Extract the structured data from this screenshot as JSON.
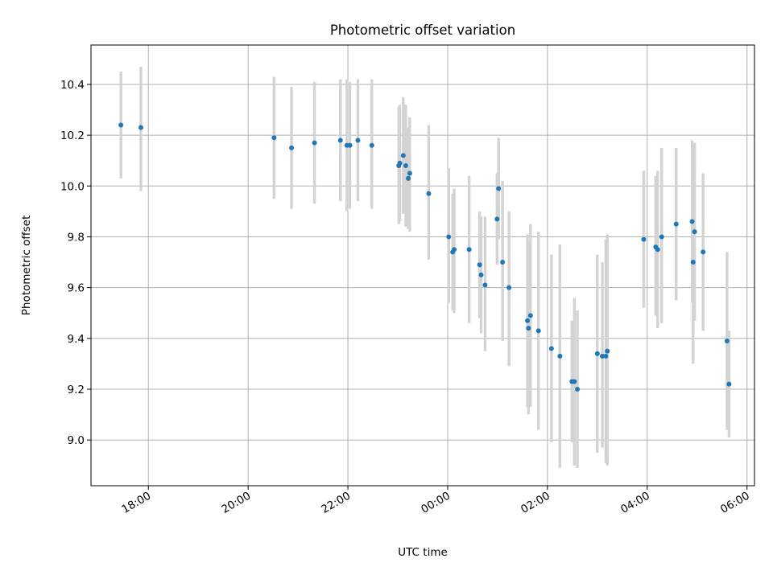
{
  "chart_data": {
    "type": "scatter",
    "title": "Photometric offset variation",
    "xlabel": "UTC time",
    "ylabel": "Photometric offset",
    "x_unit": "hours since 00:00 UTC",
    "xlim": [
      -7.15,
      6.15
    ],
    "ylim": [
      8.82,
      10.555
    ],
    "xticks": [
      {
        "value": -6,
        "label": "18:00"
      },
      {
        "value": -4,
        "label": "20:00"
      },
      {
        "value": -2,
        "label": "22:00"
      },
      {
        "value": 0,
        "label": "00:00"
      },
      {
        "value": 2,
        "label": "02:00"
      },
      {
        "value": 4,
        "label": "04:00"
      },
      {
        "value": 6,
        "label": "06:00"
      }
    ],
    "yticks": [
      {
        "value": 9.0,
        "label": "9.0"
      },
      {
        "value": 9.2,
        "label": "9.2"
      },
      {
        "value": 9.4,
        "label": "9.4"
      },
      {
        "value": 9.6,
        "label": "9.6"
      },
      {
        "value": 9.8,
        "label": "9.8"
      },
      {
        "value": 10.0,
        "label": "10.0"
      },
      {
        "value": 10.2,
        "label": "10.2"
      },
      {
        "value": 10.4,
        "label": "10.4"
      }
    ],
    "grid": true,
    "colors": {
      "points": "#1f77b4",
      "errorbars": "#d3d3d3"
    },
    "points": [
      {
        "x": -6.55,
        "y": 10.24,
        "lo": 10.03,
        "hi": 10.45
      },
      {
        "x": -6.15,
        "y": 10.23,
        "lo": 9.98,
        "hi": 10.47
      },
      {
        "x": -3.48,
        "y": 10.19,
        "lo": 9.95,
        "hi": 10.43
      },
      {
        "x": -3.13,
        "y": 10.15,
        "lo": 9.91,
        "hi": 10.39
      },
      {
        "x": -2.67,
        "y": 10.17,
        "lo": 9.93,
        "hi": 10.41
      },
      {
        "x": -2.15,
        "y": 10.18,
        "lo": 9.94,
        "hi": 10.42
      },
      {
        "x": -2.02,
        "y": 10.16,
        "lo": 9.9,
        "hi": 10.42
      },
      {
        "x": -1.96,
        "y": 10.16,
        "lo": 9.91,
        "hi": 10.41
      },
      {
        "x": -1.8,
        "y": 10.18,
        "lo": 9.94,
        "hi": 10.42
      },
      {
        "x": -1.52,
        "y": 10.16,
        "lo": 9.91,
        "hi": 10.42
      },
      {
        "x": -0.98,
        "y": 10.08,
        "lo": 9.85,
        "hi": 10.31
      },
      {
        "x": -0.96,
        "y": 10.09,
        "lo": 9.86,
        "hi": 10.32
      },
      {
        "x": -0.89,
        "y": 10.12,
        "lo": 9.89,
        "hi": 10.35
      },
      {
        "x": -0.84,
        "y": 10.08,
        "lo": 9.84,
        "hi": 10.32
      },
      {
        "x": -0.79,
        "y": 10.03,
        "lo": 9.83,
        "hi": 10.23
      },
      {
        "x": -0.76,
        "y": 10.05,
        "lo": 9.82,
        "hi": 10.27
      },
      {
        "x": -0.38,
        "y": 9.97,
        "lo": 9.71,
        "hi": 10.24
      },
      {
        "x": 0.02,
        "y": 9.8,
        "lo": 9.54,
        "hi": 10.07
      },
      {
        "x": 0.1,
        "y": 9.74,
        "lo": 9.51,
        "hi": 9.97
      },
      {
        "x": 0.13,
        "y": 9.75,
        "lo": 9.5,
        "hi": 9.99
      },
      {
        "x": 0.43,
        "y": 9.75,
        "lo": 9.46,
        "hi": 10.04
      },
      {
        "x": 0.64,
        "y": 9.69,
        "lo": 9.48,
        "hi": 9.9
      },
      {
        "x": 0.67,
        "y": 9.65,
        "lo": 9.42,
        "hi": 9.88
      },
      {
        "x": 0.75,
        "y": 9.61,
        "lo": 9.35,
        "hi": 9.88
      },
      {
        "x": 0.99,
        "y": 9.87,
        "lo": 9.69,
        "hi": 10.05
      },
      {
        "x": 1.02,
        "y": 9.99,
        "lo": 9.79,
        "hi": 10.19
      },
      {
        "x": 1.1,
        "y": 9.7,
        "lo": 9.39,
        "hi": 10.02
      },
      {
        "x": 1.23,
        "y": 9.6,
        "lo": 9.29,
        "hi": 9.9
      },
      {
        "x": 1.6,
        "y": 9.47,
        "lo": 9.13,
        "hi": 9.81
      },
      {
        "x": 1.62,
        "y": 9.44,
        "lo": 9.1,
        "hi": 9.78
      },
      {
        "x": 1.66,
        "y": 9.49,
        "lo": 9.13,
        "hi": 9.85
      },
      {
        "x": 1.82,
        "y": 9.43,
        "lo": 9.04,
        "hi": 9.82
      },
      {
        "x": 2.08,
        "y": 9.36,
        "lo": 8.99,
        "hi": 9.73
      },
      {
        "x": 2.25,
        "y": 9.33,
        "lo": 8.89,
        "hi": 9.77
      },
      {
        "x": 2.49,
        "y": 9.23,
        "lo": 8.99,
        "hi": 9.47
      },
      {
        "x": 2.54,
        "y": 9.23,
        "lo": 8.9,
        "hi": 9.56
      },
      {
        "x": 2.6,
        "y": 9.2,
        "lo": 8.89,
        "hi": 9.51
      },
      {
        "x": 3.0,
        "y": 9.34,
        "lo": 8.95,
        "hi": 9.73
      },
      {
        "x": 3.1,
        "y": 9.33,
        "lo": 8.97,
        "hi": 9.7
      },
      {
        "x": 3.17,
        "y": 9.33,
        "lo": 8.91,
        "hi": 9.79
      },
      {
        "x": 3.2,
        "y": 9.35,
        "lo": 8.9,
        "hi": 9.81
      },
      {
        "x": 3.93,
        "y": 9.79,
        "lo": 9.52,
        "hi": 10.06
      },
      {
        "x": 4.17,
        "y": 9.76,
        "lo": 9.49,
        "hi": 10.04
      },
      {
        "x": 4.21,
        "y": 9.75,
        "lo": 9.44,
        "hi": 10.06
      },
      {
        "x": 4.29,
        "y": 9.8,
        "lo": 9.46,
        "hi": 10.15
      },
      {
        "x": 4.58,
        "y": 9.85,
        "lo": 9.55,
        "hi": 10.15
      },
      {
        "x": 4.9,
        "y": 9.86,
        "lo": 9.54,
        "hi": 10.18
      },
      {
        "x": 4.92,
        "y": 9.7,
        "lo": 9.3,
        "hi": 10.1
      },
      {
        "x": 4.95,
        "y": 9.82,
        "lo": 9.47,
        "hi": 10.17
      },
      {
        "x": 5.12,
        "y": 9.74,
        "lo": 9.43,
        "hi": 10.05
      },
      {
        "x": 5.6,
        "y": 9.39,
        "lo": 9.04,
        "hi": 9.74
      },
      {
        "x": 5.64,
        "y": 9.22,
        "lo": 9.01,
        "hi": 9.43
      }
    ]
  }
}
